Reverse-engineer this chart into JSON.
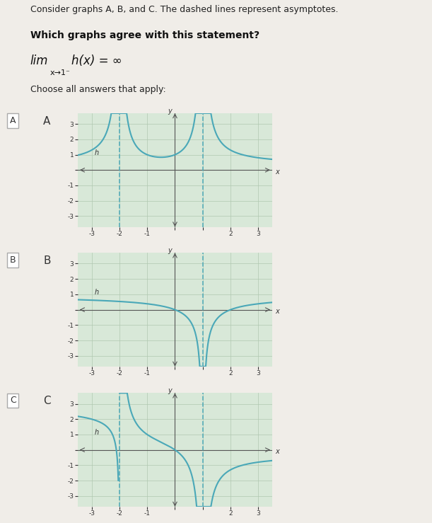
{
  "title_text": "Consider graphs A, B, and C. The dashed lines represent asymptotes.",
  "question_text": "Which graphs agree with this statement?",
  "limit_text": "lim h(x) = ∞",
  "limit_sub": "x→1⁻",
  "choose_text": "Choose all answers that apply:",
  "bg_color": "#f0ede8",
  "graph_bg": "#d8e8d8",
  "curve_color": "#4aa8b8",
  "asymptote_color": "#4aa8b8",
  "axis_color": "#555555",
  "grid_color": "#b0c8b0",
  "label_color": "#333333",
  "box_color": "#cccccc",
  "graphs": [
    {
      "label": "A",
      "asymptotes": [
        -2,
        1
      ]
    },
    {
      "label": "B",
      "asymptotes": [
        1
      ]
    },
    {
      "label": "C",
      "asymptotes": [
        -2,
        1
      ]
    }
  ]
}
